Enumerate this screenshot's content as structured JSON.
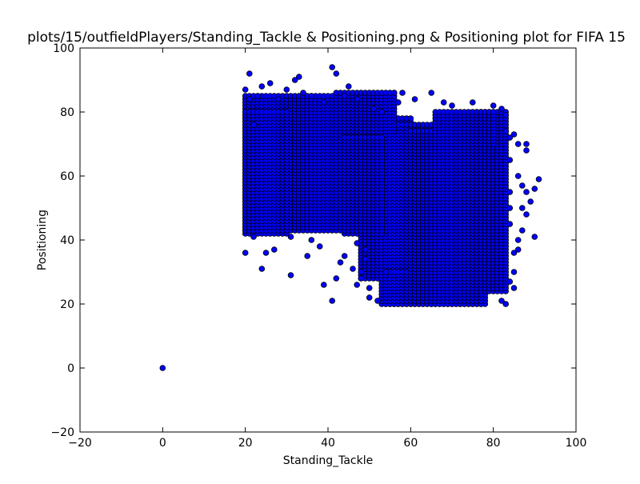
{
  "chart_data": {
    "type": "scatter",
    "title": "plots/15/outfieldPlayers/Standing_Tackle & Positioning.png & Positioning plot for FIFA 15",
    "xlabel": "Standing_Tackle",
    "ylabel": "Positioning",
    "xlim": [
      -20,
      100
    ],
    "ylim": [
      -20,
      100
    ],
    "x_ticks": [
      -20,
      0,
      20,
      40,
      60,
      80,
      100
    ],
    "y_ticks": [
      -20,
      0,
      20,
      40,
      60,
      80,
      100
    ],
    "grid": false,
    "legend": "none",
    "marker_color": "#0000ff",
    "marker_edge_color": "#000000",
    "series": [
      {
        "points": [
          [
            0,
            0
          ],
          [
            21,
            92
          ],
          [
            41,
            94
          ],
          [
            42,
            92
          ],
          [
            45,
            88
          ],
          [
            33,
            91
          ],
          [
            32,
            90
          ],
          [
            34,
            86
          ],
          [
            26,
            89
          ],
          [
            24,
            88
          ],
          [
            20,
            36
          ],
          [
            24,
            31
          ],
          [
            31,
            29
          ],
          [
            39,
            26
          ],
          [
            41,
            21
          ],
          [
            38,
            38
          ],
          [
            35,
            35
          ],
          [
            42,
            28
          ],
          [
            47,
            39
          ],
          [
            49,
            37
          ],
          [
            50,
            22
          ],
          [
            50,
            25
          ],
          [
            52,
            21
          ],
          [
            56,
            86
          ],
          [
            58,
            86
          ],
          [
            61,
            84
          ],
          [
            65,
            86
          ],
          [
            68,
            83
          ],
          [
            70,
            82
          ],
          [
            75,
            83
          ],
          [
            80,
            82
          ],
          [
            82,
            81
          ],
          [
            83,
            79
          ],
          [
            86,
            70
          ],
          [
            88,
            68
          ],
          [
            88,
            70
          ],
          [
            86,
            60
          ],
          [
            87,
            57
          ],
          [
            88,
            55
          ],
          [
            89,
            52
          ],
          [
            90,
            56
          ],
          [
            91,
            59
          ],
          [
            87,
            50
          ],
          [
            88,
            48
          ],
          [
            90,
            41
          ],
          [
            87,
            43
          ],
          [
            86,
            40
          ],
          [
            85,
            36
          ],
          [
            85,
            25
          ],
          [
            84,
            27
          ],
          [
            83,
            20
          ],
          [
            82,
            21
          ],
          [
            85,
            30
          ],
          [
            86,
            37
          ],
          [
            84,
            45
          ],
          [
            84,
            50
          ],
          [
            84,
            55
          ],
          [
            84,
            65
          ],
          [
            84,
            72
          ],
          [
            83,
            74
          ],
          [
            85,
            73
          ],
          [
            36,
            40
          ],
          [
            31,
            41
          ],
          [
            27,
            37
          ],
          [
            25,
            36
          ],
          [
            22,
            41
          ],
          [
            43,
            33
          ],
          [
            44,
            35
          ],
          [
            46,
            31
          ],
          [
            48,
            30
          ],
          [
            49,
            34
          ],
          [
            48,
            28
          ],
          [
            47,
            26
          ],
          [
            54,
            30
          ],
          [
            57,
            83
          ],
          [
            53,
            80
          ],
          [
            51,
            81
          ],
          [
            47,
            84
          ],
          [
            44,
            85
          ],
          [
            39,
            83
          ],
          [
            36,
            85
          ],
          [
            30,
            87
          ],
          [
            28,
            84
          ],
          [
            23,
            85
          ],
          [
            20,
            87
          ],
          [
            21,
            84
          ],
          [
            22,
            76
          ]
        ],
        "dense_regions": [
          {
            "x": [
              20,
              48
            ],
            "y": [
              43,
              85
            ]
          },
          {
            "x": [
              20,
              30
            ],
            "y": [
              42,
              80
            ]
          },
          {
            "x": [
              48,
              60
            ],
            "y": [
              28,
              78
            ]
          },
          {
            "x": [
              53,
              78
            ],
            "y": [
              20,
              76
            ]
          },
          {
            "x": [
              54,
              77
            ],
            "y": [
              20,
              30
            ]
          },
          {
            "x": [
              60,
              76
            ],
            "y": [
              30,
              74
            ]
          },
          {
            "x": [
              76,
              83
            ],
            "y": [
              24,
              80
            ]
          },
          {
            "x": [
              44,
              53
            ],
            "y": [
              42,
              72
            ]
          },
          {
            "x": [
              66,
              80
            ],
            "y": [
              70,
              80
            ]
          },
          {
            "x": [
              42,
              56
            ],
            "y": [
              74,
              86
            ]
          }
        ]
      }
    ]
  }
}
